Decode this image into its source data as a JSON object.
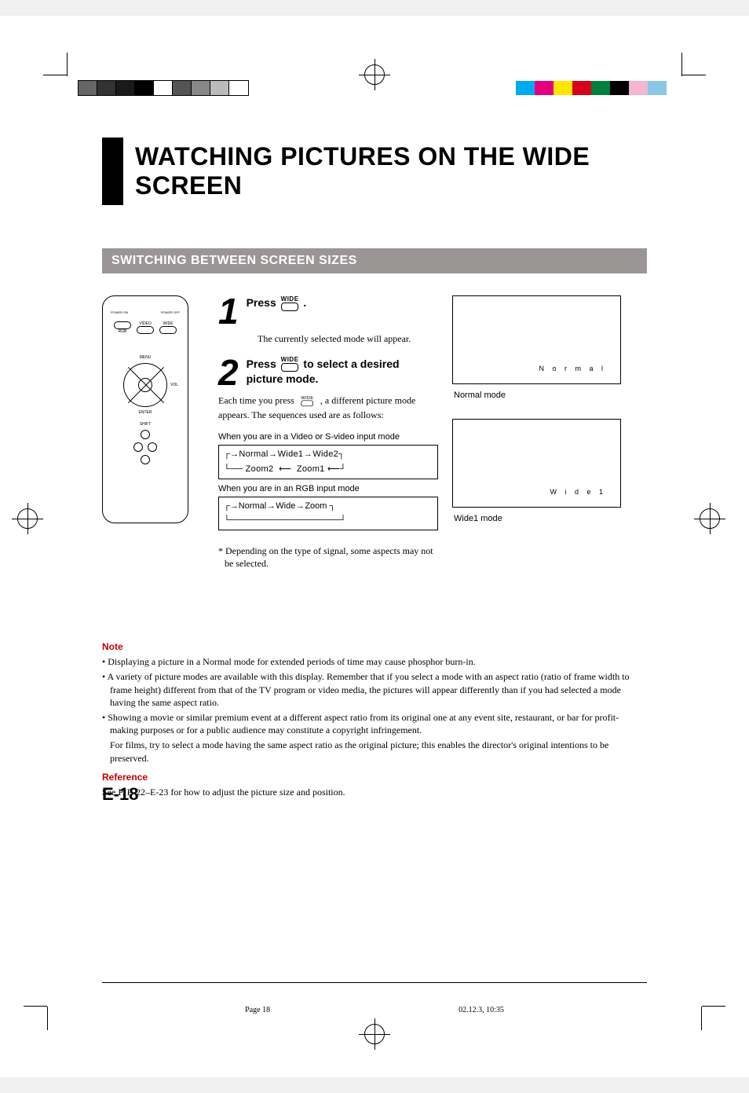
{
  "printer_bars": {
    "left_colors": [
      "#666666",
      "#333333",
      "#1a1a1a",
      "#000000",
      "#ffffff",
      "#555555",
      "#888888",
      "#bbbbbb",
      "#ffffff"
    ],
    "left_border": "#000000",
    "right_colors": [
      "#00aaee",
      "#e6007e",
      "#ffe600",
      "#d9001b",
      "#007f3e",
      "#000000",
      "#f4b5cf",
      "#88c7e6"
    ]
  },
  "title": "WATCHING PICTURES ON THE WIDE SCREEN",
  "section_header": "SWITCHING BETWEEN SCREEN SIZES",
  "remote": {
    "top_labels": [
      "POWER ON",
      "POWER OFF"
    ],
    "rgb": "RGB",
    "video": "VIDEO",
    "wide": "WIDE",
    "menu": "MENU",
    "vol": "VOL",
    "enter": "ENTER",
    "shift": "SHIFT",
    "arrows": [
      "▲",
      "▼",
      "◄",
      "►"
    ]
  },
  "steps": {
    "wide_label": "WIDE",
    "s1_head_a": "Press ",
    "s1_head_b": ".",
    "s1_body": "The currently selected mode will appear.",
    "s2_head_a": "Press ",
    "s2_head_b": " to select a desired picture mode.",
    "s2_body1": "Each time you press , a different picture mode appears.  The sequences used are as follows:",
    "s2_body_prefix": "Each time you press ",
    "s2_body_suffix": ", a different picture mode appears.  The sequences used are as follows:",
    "mode_video_head": "When you are in a Video or S-video input mode",
    "flow1_line1": "Normal → Wide1 → Wide2",
    "flow1_line2_a": "Zoom2",
    "flow1_line2_b": "Zoom1",
    "mode_rgb_head": "When you are in an RGB input mode",
    "flow2": "Normal → Wide → Zoom",
    "footnote": "* Depending on the type of signal, some aspects may not be selected."
  },
  "screens": {
    "normal_osd": "N o r m a l",
    "normal_caption": "Normal mode",
    "wide1_osd": "W i d e 1",
    "wide1_caption": "Wide1 mode"
  },
  "notes": {
    "title": "Note",
    "b1": "Displaying a picture in a Normal mode for extended periods of time may cause phosphor burn-in.",
    "b2": "A variety of picture modes are available with this display.  Remember that if you select a mode with an aspect ratio (ratio of frame width to frame height) different from that of the TV program or video media, the pictures will appear differently than if you had selected a mode having the same aspect ratio.",
    "b3": "Showing a movie or similar premium event at a different aspect ratio from its original one at any event site, restaurant, or bar for profit-making purposes or for a public audience may constitute a copyright infringement.",
    "b3c": "For films, try to select a mode having the same aspect ratio as the original picture; this enables the director's original intentions to be preserved.",
    "ref_title": "Reference",
    "ref": "See P. E-22–E-23 for how to adjust the picture size and position."
  },
  "page_number": "E-18",
  "footer": {
    "left": "Page 18",
    "right": "02.12.3, 10:35"
  }
}
